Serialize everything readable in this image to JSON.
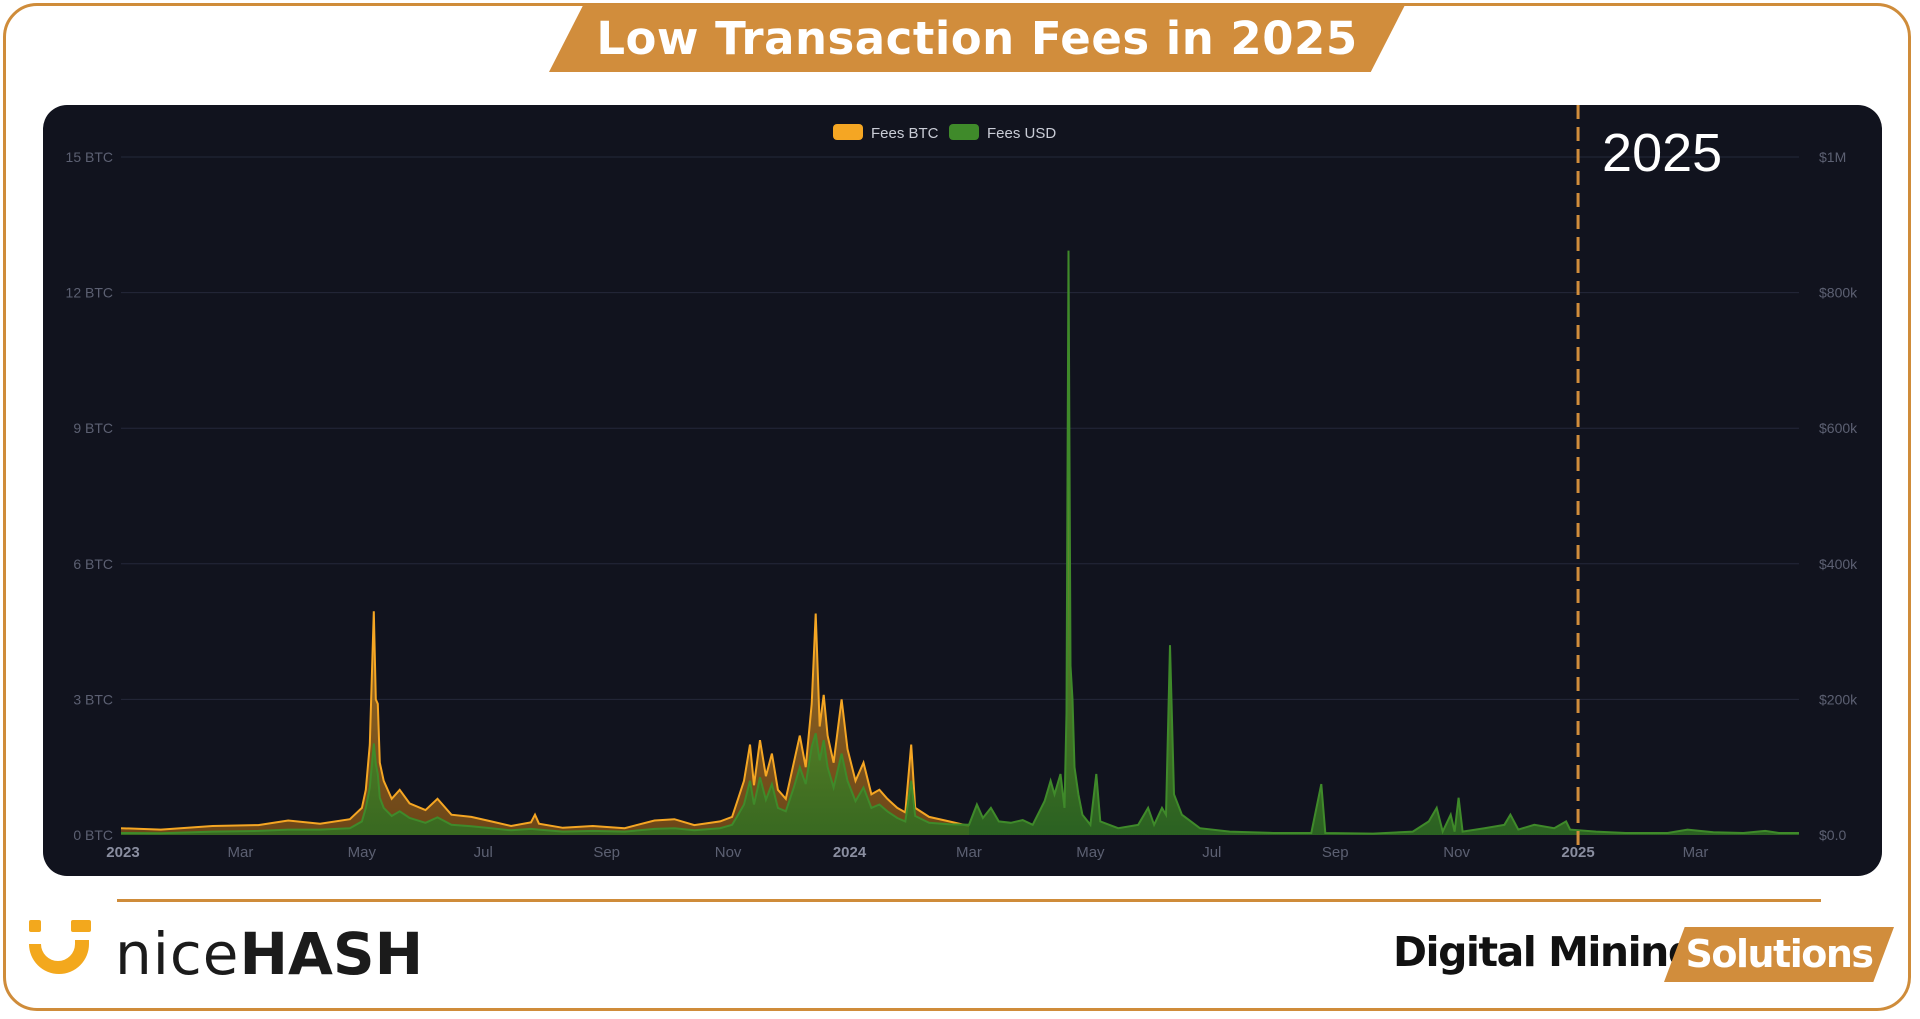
{
  "title": "Low Transaction Fees in 2025",
  "brand": {
    "logo_name": "nicehash-logo",
    "word_light": "nice",
    "word_bold": "HASH"
  },
  "tagline": {
    "left": "Digital Mining",
    "right": "Solutions"
  },
  "colors": {
    "accent": "#d18d3c",
    "panel_bg": "#11131e",
    "fees_btc": "#f5a623",
    "fees_usd": "#3f8a2a",
    "tick_text": "#5c6072"
  },
  "chart_data": {
    "type": "area",
    "title": "",
    "legend": [
      "Fees BTC",
      "Fees USD"
    ],
    "legend_position": "top-center",
    "grid": true,
    "x_axis": {
      "range": [
        "2022-12-31",
        "2025-04-22"
      ],
      "ticks": [
        {
          "date": "2023-01-01",
          "label": "2023",
          "bold": true
        },
        {
          "date": "2023-03-01",
          "label": "Mar",
          "bold": false
        },
        {
          "date": "2023-05-01",
          "label": "May",
          "bold": false
        },
        {
          "date": "2023-07-01",
          "label": "Jul",
          "bold": false
        },
        {
          "date": "2023-09-01",
          "label": "Sep",
          "bold": false
        },
        {
          "date": "2023-11-01",
          "label": "Nov",
          "bold": false
        },
        {
          "date": "2024-01-01",
          "label": "2024",
          "bold": true
        },
        {
          "date": "2024-03-01",
          "label": "Mar",
          "bold": false
        },
        {
          "date": "2024-05-01",
          "label": "May",
          "bold": false
        },
        {
          "date": "2024-07-01",
          "label": "Jul",
          "bold": false
        },
        {
          "date": "2024-09-01",
          "label": "Sep",
          "bold": false
        },
        {
          "date": "2024-11-01",
          "label": "Nov",
          "bold": false
        },
        {
          "date": "2025-01-01",
          "label": "2025",
          "bold": true
        },
        {
          "date": "2025-03-01",
          "label": "Mar",
          "bold": false
        }
      ]
    },
    "y_left": {
      "ylim": [
        0,
        15
      ],
      "ticks": [
        0,
        3,
        6,
        9,
        12,
        15
      ],
      "tick_labels": [
        "0 BTC",
        "3 BTC",
        "6 BTC",
        "9 BTC",
        "12 BTC",
        "15 BTC"
      ]
    },
    "y_right": {
      "ylim": [
        0,
        1000000
      ],
      "ticks": [
        0,
        200000,
        400000,
        600000,
        800000,
        1000000
      ],
      "tick_labels": [
        "$0.0",
        "$200k",
        "$400k",
        "$600k",
        "$800k",
        "$1M"
      ]
    },
    "marker": {
      "date": "2025-01-01",
      "label": "2025",
      "style": "dashed"
    },
    "series": [
      {
        "name": "Fees BTC",
        "axis": "left",
        "points": [
          [
            "2022-12-31",
            0.15
          ],
          [
            "2023-01-20",
            0.12
          ],
          [
            "2023-02-15",
            0.2
          ],
          [
            "2023-03-10",
            0.22
          ],
          [
            "2023-03-25",
            0.32
          ],
          [
            "2023-04-10",
            0.25
          ],
          [
            "2023-04-25",
            0.35
          ],
          [
            "2023-05-01",
            0.6
          ],
          [
            "2023-05-03",
            1.0
          ],
          [
            "2023-05-05",
            2.0
          ],
          [
            "2023-05-07",
            4.95
          ],
          [
            "2023-05-08",
            3.0
          ],
          [
            "2023-05-09",
            2.9
          ],
          [
            "2023-05-10",
            1.6
          ],
          [
            "2023-05-12",
            1.2
          ],
          [
            "2023-05-16",
            0.8
          ],
          [
            "2023-05-20",
            1.0
          ],
          [
            "2023-05-25",
            0.7
          ],
          [
            "2023-06-02",
            0.55
          ],
          [
            "2023-06-08",
            0.8
          ],
          [
            "2023-06-15",
            0.45
          ],
          [
            "2023-06-25",
            0.4
          ],
          [
            "2023-07-05",
            0.3
          ],
          [
            "2023-07-15",
            0.2
          ],
          [
            "2023-07-25",
            0.28
          ],
          [
            "2023-07-27",
            0.45
          ],
          [
            "2023-07-29",
            0.25
          ],
          [
            "2023-08-10",
            0.16
          ],
          [
            "2023-08-25",
            0.2
          ],
          [
            "2023-09-10",
            0.15
          ],
          [
            "2023-09-25",
            0.32
          ],
          [
            "2023-10-05",
            0.35
          ],
          [
            "2023-10-15",
            0.22
          ],
          [
            "2023-10-28",
            0.3
          ],
          [
            "2023-11-03",
            0.4
          ],
          [
            "2023-11-06",
            0.8
          ],
          [
            "2023-11-09",
            1.2
          ],
          [
            "2023-11-12",
            2.0
          ],
          [
            "2023-11-14",
            1.1
          ],
          [
            "2023-11-17",
            2.1
          ],
          [
            "2023-11-20",
            1.3
          ],
          [
            "2023-11-23",
            1.8
          ],
          [
            "2023-11-26",
            1.0
          ],
          [
            "2023-11-30",
            0.8
          ],
          [
            "2023-12-04",
            1.6
          ],
          [
            "2023-12-07",
            2.2
          ],
          [
            "2023-12-10",
            1.5
          ],
          [
            "2023-12-13",
            2.9
          ],
          [
            "2023-12-15",
            4.9
          ],
          [
            "2023-12-17",
            2.4
          ],
          [
            "2023-12-19",
            3.1
          ],
          [
            "2023-12-21",
            2.2
          ],
          [
            "2023-12-24",
            1.6
          ],
          [
            "2023-12-28",
            3.0
          ],
          [
            "2023-12-31",
            1.9
          ],
          [
            "2024-01-04",
            1.2
          ],
          [
            "2024-01-08",
            1.6
          ],
          [
            "2024-01-12",
            0.9
          ],
          [
            "2024-01-16",
            1.0
          ],
          [
            "2024-01-20",
            0.8
          ],
          [
            "2024-01-25",
            0.6
          ],
          [
            "2024-01-29",
            0.5
          ],
          [
            "2024-02-01",
            2.0
          ],
          [
            "2024-02-03",
            0.6
          ],
          [
            "2024-02-10",
            0.4
          ],
          [
            "2024-02-20",
            0.3
          ],
          [
            "2024-03-01",
            0.2
          ]
        ]
      },
      {
        "name": "Fees USD",
        "axis": "right",
        "points": [
          [
            "2022-12-31",
            3000
          ],
          [
            "2023-01-20",
            2500
          ],
          [
            "2023-02-15",
            5000
          ],
          [
            "2023-03-10",
            6000
          ],
          [
            "2023-03-25",
            8000
          ],
          [
            "2023-04-10",
            8000
          ],
          [
            "2023-04-25",
            10000
          ],
          [
            "2023-05-01",
            20000
          ],
          [
            "2023-05-03",
            40000
          ],
          [
            "2023-05-05",
            70000
          ],
          [
            "2023-05-07",
            135000
          ],
          [
            "2023-05-08",
            105000
          ],
          [
            "2023-05-09",
            90000
          ],
          [
            "2023-05-10",
            55000
          ],
          [
            "2023-05-12",
            40000
          ],
          [
            "2023-05-16",
            28000
          ],
          [
            "2023-05-20",
            35000
          ],
          [
            "2023-05-25",
            25000
          ],
          [
            "2023-06-02",
            18000
          ],
          [
            "2023-06-08",
            26000
          ],
          [
            "2023-06-15",
            15000
          ],
          [
            "2023-06-25",
            13000
          ],
          [
            "2023-07-05",
            10000
          ],
          [
            "2023-07-15",
            7000
          ],
          [
            "2023-07-25",
            9000
          ],
          [
            "2023-07-29",
            8000
          ],
          [
            "2023-08-10",
            5000
          ],
          [
            "2023-08-25",
            6000
          ],
          [
            "2023-09-10",
            5000
          ],
          [
            "2023-09-25",
            9000
          ],
          [
            "2023-10-05",
            10000
          ],
          [
            "2023-10-15",
            7000
          ],
          [
            "2023-10-28",
            10000
          ],
          [
            "2023-11-03",
            15000
          ],
          [
            "2023-11-06",
            30000
          ],
          [
            "2023-11-09",
            45000
          ],
          [
            "2023-11-12",
            80000
          ],
          [
            "2023-11-14",
            45000
          ],
          [
            "2023-11-17",
            85000
          ],
          [
            "2023-11-20",
            52000
          ],
          [
            "2023-11-23",
            75000
          ],
          [
            "2023-11-26",
            40000
          ],
          [
            "2023-11-30",
            35000
          ],
          [
            "2023-12-04",
            70000
          ],
          [
            "2023-12-07",
            100000
          ],
          [
            "2023-12-10",
            75000
          ],
          [
            "2023-12-13",
            130000
          ],
          [
            "2023-12-15",
            150000
          ],
          [
            "2023-12-17",
            110000
          ],
          [
            "2023-12-19",
            140000
          ],
          [
            "2023-12-21",
            100000
          ],
          [
            "2023-12-24",
            70000
          ],
          [
            "2023-12-28",
            120000
          ],
          [
            "2023-12-31",
            80000
          ],
          [
            "2024-01-04",
            50000
          ],
          [
            "2024-01-08",
            70000
          ],
          [
            "2024-01-12",
            40000
          ],
          [
            "2024-01-16",
            45000
          ],
          [
            "2024-01-20",
            35000
          ],
          [
            "2024-01-25",
            25000
          ],
          [
            "2024-01-29",
            20000
          ],
          [
            "2024-02-01",
            80000
          ],
          [
            "2024-02-03",
            28000
          ],
          [
            "2024-02-10",
            18000
          ],
          [
            "2024-02-20",
            16000
          ],
          [
            "2024-03-01",
            15000
          ],
          [
            "2024-03-05",
            45000
          ],
          [
            "2024-03-08",
            25000
          ],
          [
            "2024-03-12",
            40000
          ],
          [
            "2024-03-16",
            20000
          ],
          [
            "2024-03-22",
            18000
          ],
          [
            "2024-03-28",
            22000
          ],
          [
            "2024-04-02",
            15000
          ],
          [
            "2024-04-08",
            50000
          ],
          [
            "2024-04-11",
            80000
          ],
          [
            "2024-04-13",
            60000
          ],
          [
            "2024-04-16",
            90000
          ],
          [
            "2024-04-18",
            40000
          ],
          [
            "2024-04-19",
            180000
          ],
          [
            "2024-04-20",
            862000
          ],
          [
            "2024-04-21",
            250000
          ],
          [
            "2024-04-22",
            200000
          ],
          [
            "2024-04-23",
            100000
          ],
          [
            "2024-04-25",
            60000
          ],
          [
            "2024-04-27",
            30000
          ],
          [
            "2024-05-01",
            15000
          ],
          [
            "2024-05-04",
            90000
          ],
          [
            "2024-05-06",
            20000
          ],
          [
            "2024-05-15",
            10000
          ],
          [
            "2024-05-25",
            15000
          ],
          [
            "2024-05-30",
            40000
          ],
          [
            "2024-06-02",
            15000
          ],
          [
            "2024-06-06",
            40000
          ],
          [
            "2024-06-08",
            30000
          ],
          [
            "2024-06-10",
            280000
          ],
          [
            "2024-06-12",
            60000
          ],
          [
            "2024-06-16",
            30000
          ],
          [
            "2024-06-25",
            10000
          ],
          [
            "2024-07-10",
            5000
          ],
          [
            "2024-08-01",
            3000
          ],
          [
            "2024-08-20",
            3000
          ],
          [
            "2024-08-25",
            75000
          ],
          [
            "2024-08-27",
            3000
          ],
          [
            "2024-09-20",
            2000
          ],
          [
            "2024-10-10",
            5000
          ],
          [
            "2024-10-18",
            20000
          ],
          [
            "2024-10-22",
            40000
          ],
          [
            "2024-10-25",
            5000
          ],
          [
            "2024-10-29",
            30000
          ],
          [
            "2024-10-31",
            5000
          ],
          [
            "2024-11-02",
            55000
          ],
          [
            "2024-11-04",
            5000
          ],
          [
            "2024-11-15",
            10000
          ],
          [
            "2024-11-25",
            15000
          ],
          [
            "2024-11-28",
            30000
          ],
          [
            "2024-12-02",
            8000
          ],
          [
            "2024-12-10",
            15000
          ],
          [
            "2024-12-20",
            10000
          ],
          [
            "2024-12-26",
            20000
          ],
          [
            "2024-12-28",
            8000
          ],
          [
            "2025-01-10",
            5000
          ],
          [
            "2025-01-25",
            3000
          ],
          [
            "2025-02-15",
            3000
          ],
          [
            "2025-02-25",
            8000
          ],
          [
            "2025-03-10",
            4000
          ],
          [
            "2025-03-25",
            3000
          ],
          [
            "2025-04-05",
            6000
          ],
          [
            "2025-04-12",
            3000
          ],
          [
            "2025-04-22",
            3000
          ]
        ]
      }
    ]
  }
}
